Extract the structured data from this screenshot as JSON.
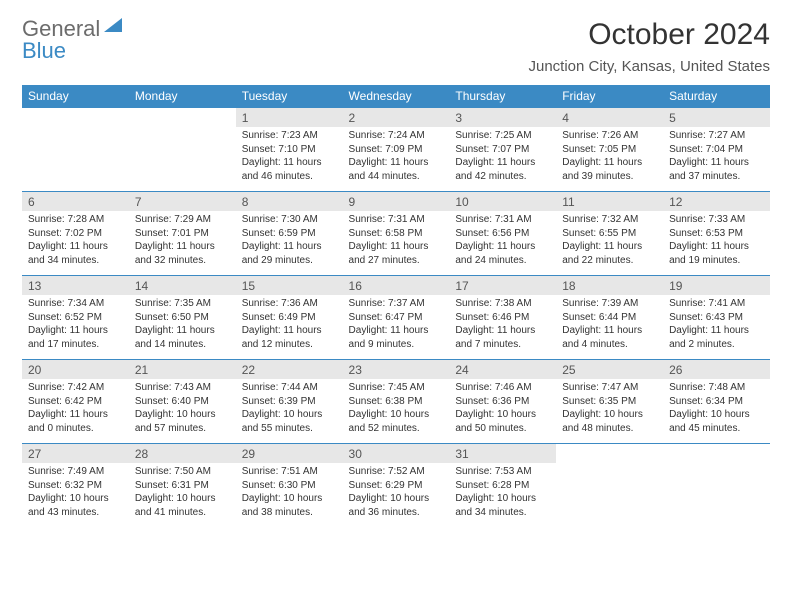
{
  "brand": {
    "part1": "General",
    "part2": "Blue"
  },
  "title": "October 2024",
  "location": "Junction City, Kansas, United States",
  "colors": {
    "header_bg": "#3b8ac4",
    "header_text": "#ffffff",
    "daynum_bg": "#e7e7e7",
    "body_text": "#333333",
    "border": "#3b8ac4"
  },
  "dayNames": [
    "Sunday",
    "Monday",
    "Tuesday",
    "Wednesday",
    "Thursday",
    "Friday",
    "Saturday"
  ],
  "weeks": [
    {
      "nums": [
        "",
        "",
        "1",
        "2",
        "3",
        "4",
        "5"
      ],
      "cells": [
        null,
        null,
        {
          "sunrise": "7:23 AM",
          "sunset": "7:10 PM",
          "daylight": "11 hours and 46 minutes."
        },
        {
          "sunrise": "7:24 AM",
          "sunset": "7:09 PM",
          "daylight": "11 hours and 44 minutes."
        },
        {
          "sunrise": "7:25 AM",
          "sunset": "7:07 PM",
          "daylight": "11 hours and 42 minutes."
        },
        {
          "sunrise": "7:26 AM",
          "sunset": "7:05 PM",
          "daylight": "11 hours and 39 minutes."
        },
        {
          "sunrise": "7:27 AM",
          "sunset": "7:04 PM",
          "daylight": "11 hours and 37 minutes."
        }
      ]
    },
    {
      "nums": [
        "6",
        "7",
        "8",
        "9",
        "10",
        "11",
        "12"
      ],
      "cells": [
        {
          "sunrise": "7:28 AM",
          "sunset": "7:02 PM",
          "daylight": "11 hours and 34 minutes."
        },
        {
          "sunrise": "7:29 AM",
          "sunset": "7:01 PM",
          "daylight": "11 hours and 32 minutes."
        },
        {
          "sunrise": "7:30 AM",
          "sunset": "6:59 PM",
          "daylight": "11 hours and 29 minutes."
        },
        {
          "sunrise": "7:31 AM",
          "sunset": "6:58 PM",
          "daylight": "11 hours and 27 minutes."
        },
        {
          "sunrise": "7:31 AM",
          "sunset": "6:56 PM",
          "daylight": "11 hours and 24 minutes."
        },
        {
          "sunrise": "7:32 AM",
          "sunset": "6:55 PM",
          "daylight": "11 hours and 22 minutes."
        },
        {
          "sunrise": "7:33 AM",
          "sunset": "6:53 PM",
          "daylight": "11 hours and 19 minutes."
        }
      ]
    },
    {
      "nums": [
        "13",
        "14",
        "15",
        "16",
        "17",
        "18",
        "19"
      ],
      "cells": [
        {
          "sunrise": "7:34 AM",
          "sunset": "6:52 PM",
          "daylight": "11 hours and 17 minutes."
        },
        {
          "sunrise": "7:35 AM",
          "sunset": "6:50 PM",
          "daylight": "11 hours and 14 minutes."
        },
        {
          "sunrise": "7:36 AM",
          "sunset": "6:49 PM",
          "daylight": "11 hours and 12 minutes."
        },
        {
          "sunrise": "7:37 AM",
          "sunset": "6:47 PM",
          "daylight": "11 hours and 9 minutes."
        },
        {
          "sunrise": "7:38 AM",
          "sunset": "6:46 PM",
          "daylight": "11 hours and 7 minutes."
        },
        {
          "sunrise": "7:39 AM",
          "sunset": "6:44 PM",
          "daylight": "11 hours and 4 minutes."
        },
        {
          "sunrise": "7:41 AM",
          "sunset": "6:43 PM",
          "daylight": "11 hours and 2 minutes."
        }
      ]
    },
    {
      "nums": [
        "20",
        "21",
        "22",
        "23",
        "24",
        "25",
        "26"
      ],
      "cells": [
        {
          "sunrise": "7:42 AM",
          "sunset": "6:42 PM",
          "daylight": "11 hours and 0 minutes."
        },
        {
          "sunrise": "7:43 AM",
          "sunset": "6:40 PM",
          "daylight": "10 hours and 57 minutes."
        },
        {
          "sunrise": "7:44 AM",
          "sunset": "6:39 PM",
          "daylight": "10 hours and 55 minutes."
        },
        {
          "sunrise": "7:45 AM",
          "sunset": "6:38 PM",
          "daylight": "10 hours and 52 minutes."
        },
        {
          "sunrise": "7:46 AM",
          "sunset": "6:36 PM",
          "daylight": "10 hours and 50 minutes."
        },
        {
          "sunrise": "7:47 AM",
          "sunset": "6:35 PM",
          "daylight": "10 hours and 48 minutes."
        },
        {
          "sunrise": "7:48 AM",
          "sunset": "6:34 PM",
          "daylight": "10 hours and 45 minutes."
        }
      ]
    },
    {
      "nums": [
        "27",
        "28",
        "29",
        "30",
        "31",
        "",
        ""
      ],
      "cells": [
        {
          "sunrise": "7:49 AM",
          "sunset": "6:32 PM",
          "daylight": "10 hours and 43 minutes."
        },
        {
          "sunrise": "7:50 AM",
          "sunset": "6:31 PM",
          "daylight": "10 hours and 41 minutes."
        },
        {
          "sunrise": "7:51 AM",
          "sunset": "6:30 PM",
          "daylight": "10 hours and 38 minutes."
        },
        {
          "sunrise": "7:52 AM",
          "sunset": "6:29 PM",
          "daylight": "10 hours and 36 minutes."
        },
        {
          "sunrise": "7:53 AM",
          "sunset": "6:28 PM",
          "daylight": "10 hours and 34 minutes."
        },
        null,
        null
      ]
    }
  ],
  "labels": {
    "sunrise": "Sunrise: ",
    "sunset": "Sunset: ",
    "daylight": "Daylight: "
  }
}
